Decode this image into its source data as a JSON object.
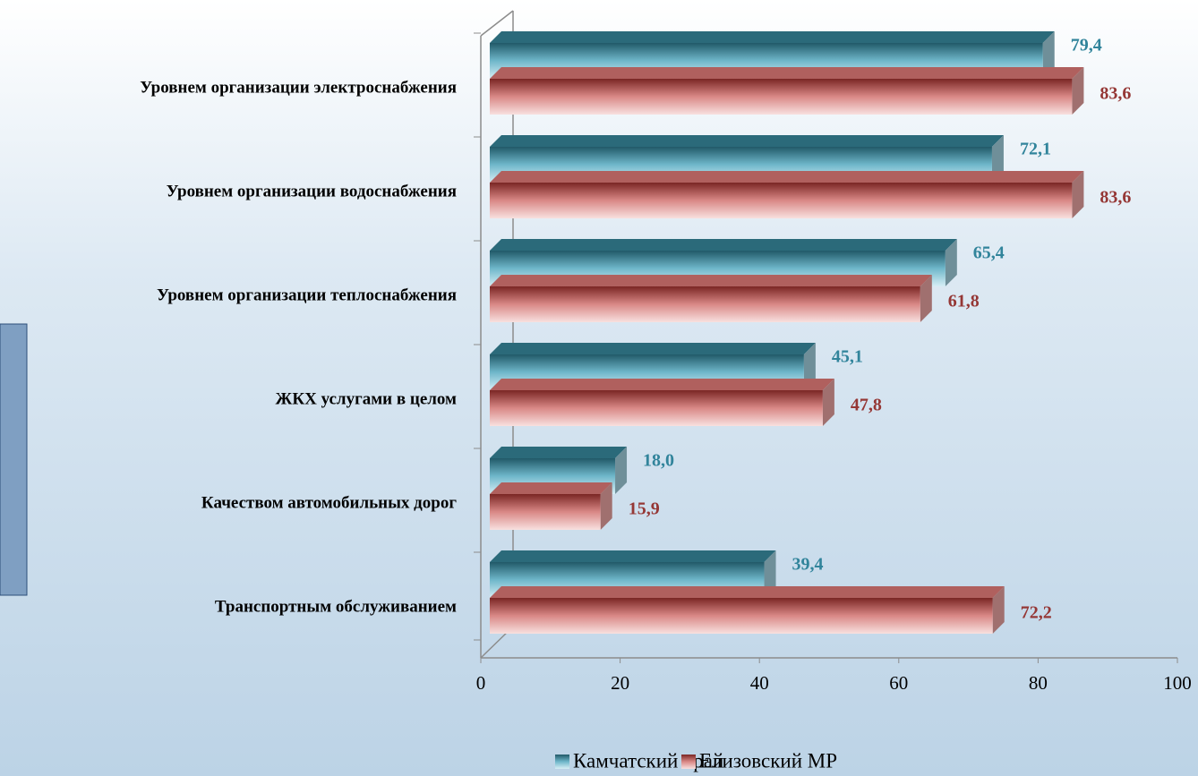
{
  "chart_data": {
    "type": "bar",
    "orientation": "horizontal",
    "categories": [
      "Уровнем организации электроснабжения",
      "Уровнем организации водоснабжения",
      "Уровнем организации теплоснабжения",
      "ЖКХ услугами в целом",
      "Качеством автомобильных дорог",
      "Транспортным обслуживанием"
    ],
    "series": [
      {
        "name": "Камчатский край",
        "color": "#31849b",
        "values": [
          79.4,
          72.1,
          65.4,
          45.1,
          18.0,
          39.4
        ],
        "value_labels": [
          "79,4",
          "72,1",
          "65,4",
          "45,1",
          "18,0",
          "39,4"
        ]
      },
      {
        "name": "Елизовский МР",
        "color": "#953735",
        "values": [
          83.6,
          83.6,
          61.8,
          47.8,
          15.9,
          72.2
        ],
        "value_labels": [
          "83,6",
          "83,6",
          "61,8",
          "47,8",
          "15,9",
          "72,2"
        ]
      }
    ],
    "xlim": [
      0,
      100
    ],
    "xticks": [
      0,
      20,
      40,
      60,
      80,
      100
    ],
    "legend": "bottom"
  }
}
